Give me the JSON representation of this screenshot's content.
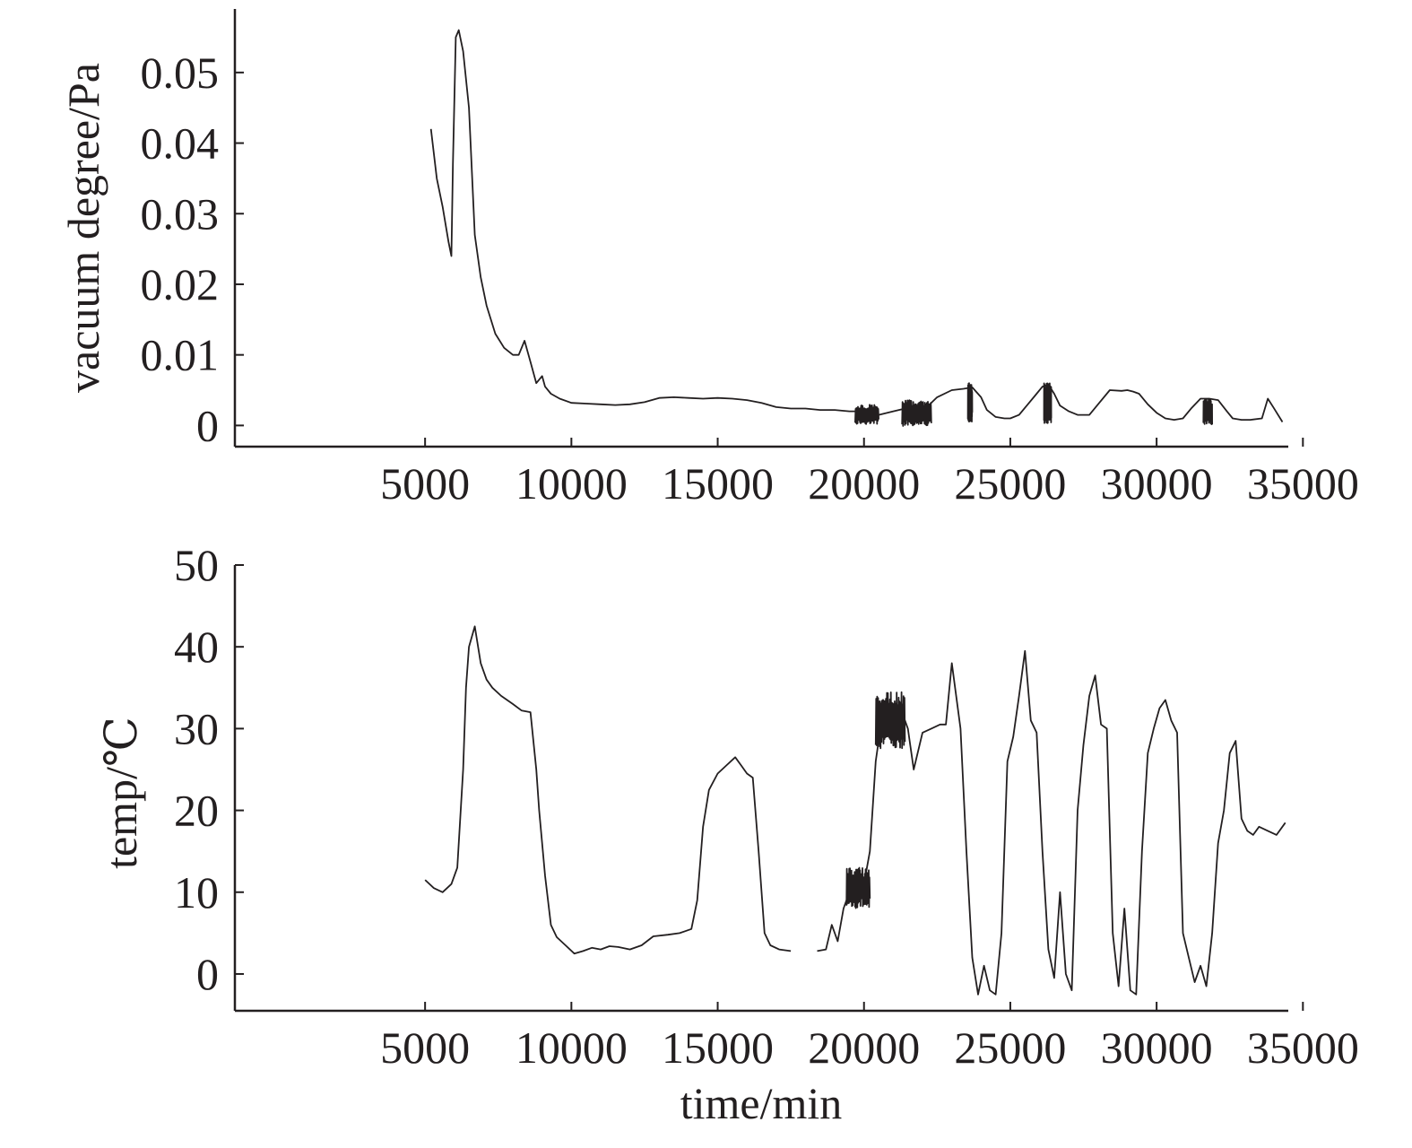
{
  "chart_data": [
    {
      "type": "line",
      "title": "",
      "xlabel": "",
      "ylabel": "vacuum degree/Pa",
      "xlim": [
        -1500,
        34500
      ],
      "ylim": [
        -0.003,
        0.059
      ],
      "xticks": [
        5000,
        10000,
        15000,
        20000,
        25000,
        30000,
        35000
      ],
      "xtick_labels": [
        "5000",
        "10000",
        "15000",
        "20000",
        "25000",
        "30000",
        "35000"
      ],
      "yticks": [
        0,
        0.01,
        0.02,
        0.03,
        0.04,
        0.05
      ],
      "ytick_labels": [
        "0",
        "0.01",
        "0.02",
        "0.03",
        "0.04",
        "0.05"
      ],
      "grid": false,
      "series": [
        {
          "segments": [
            {
              "x": [
                5200,
                5400,
                5600,
                5800,
                5900,
                5950,
                6050,
                6150,
                6300,
                6500,
                6700,
                6900,
                7100,
                7400,
                7700,
                8000,
                8200,
                8400,
                8600,
                8800,
                9000,
                9100,
                9300,
                9600,
                10000,
                10500,
                11000,
                11500,
                12000,
                12500,
                13000,
                13500,
                14000,
                14500,
                15000,
                15500,
                16000,
                16500,
                17000,
                17500,
                18000,
                18500,
                19000,
                19500,
                20000,
                20500,
                21000,
                21500,
                22000,
                22500,
                23000,
                23400,
                23700,
                24000,
                24200,
                24500,
                24800,
                25000,
                25300,
                25600,
                25900,
                26100,
                26300,
                26500,
                26700,
                27000,
                27300,
                27700,
                28000,
                28400,
                28800,
                29000,
                29200,
                29400,
                29700,
                30000,
                30300,
                30600,
                30900,
                31200,
                31500,
                31800,
                32100,
                32400,
                32600,
                32900,
                33200,
                33600,
                33800,
                34000,
                34300
              ],
              "y": [
                0.042,
                0.035,
                0.031,
                0.026,
                0.024,
                0.037,
                0.055,
                0.056,
                0.053,
                0.045,
                0.027,
                0.021,
                0.017,
                0.013,
                0.011,
                0.01,
                0.01,
                0.012,
                0.009,
                0.006,
                0.007,
                0.0055,
                0.0045,
                0.0038,
                0.0032,
                0.0031,
                0.003,
                0.0029,
                0.003,
                0.0033,
                0.0039,
                0.004,
                0.0039,
                0.0038,
                0.0039,
                0.0038,
                0.0036,
                0.0032,
                0.0026,
                0.0024,
                0.0024,
                0.0022,
                0.0022,
                0.002,
                0.002,
                0.0015,
                0.002,
                0.0025,
                0.002,
                0.004,
                0.005,
                0.0052,
                0.0054,
                0.004,
                0.0022,
                0.0012,
                0.001,
                0.001,
                0.0015,
                0.003,
                0.0045,
                0.0055,
                0.0058,
                0.0045,
                0.0028,
                0.002,
                0.0015,
                0.0015,
                0.003,
                0.005,
                0.0049,
                0.005,
                0.0048,
                0.0045,
                0.003,
                0.0018,
                0.001,
                0.0008,
                0.001,
                0.0025,
                0.0038,
                0.0038,
                0.0036,
                0.002,
                0.001,
                0.0008,
                0.0008,
                0.001,
                0.0038,
                0.0025,
                0.0005
              ]
            }
          ],
          "noise": [
            {
              "x_range": [
                19700,
                20500
              ],
              "y_range": [
                0.0002,
                0.003
              ]
            },
            {
              "x_range": [
                21300,
                22300
              ],
              "y_range": [
                -0.0001,
                0.0036
              ]
            },
            {
              "x_range": [
                23550,
                23700
              ],
              "y_range": [
                0.0005,
                0.006
              ]
            },
            {
              "x_range": [
                26150,
                26400
              ],
              "y_range": [
                0.0003,
                0.006
              ]
            },
            {
              "x_range": [
                31600,
                31900
              ],
              "y_range": [
                0.0001,
                0.0038
              ]
            }
          ]
        }
      ]
    },
    {
      "type": "line",
      "title": "",
      "xlabel": "time/min",
      "ylabel": "temp/℃",
      "xlim": [
        -1500,
        34500
      ],
      "ylim": [
        -4.5,
        50
      ],
      "xticks": [
        5000,
        10000,
        15000,
        20000,
        25000,
        30000,
        35000
      ],
      "xtick_labels": [
        "5000",
        "10000",
        "15000",
        "20000",
        "25000",
        "30000",
        "35000"
      ],
      "yticks": [
        0,
        10,
        20,
        30,
        40,
        50
      ],
      "ytick_labels": [
        "0",
        "10",
        "20",
        "30",
        "40",
        "50"
      ],
      "grid": false,
      "series": [
        {
          "segments": [
            {
              "x": [
                5000,
                5300,
                5600,
                5900,
                6100,
                6300,
                6400,
                6500,
                6700,
                6900,
                7100,
                7300,
                7600,
                8000,
                8300,
                8600,
                8800,
                8900,
                9100,
                9300,
                9500,
                9800,
                10100,
                10400,
                10700,
                11000,
                11300,
                11600,
                12000,
                12400,
                12800,
                13300,
                13700,
                14100,
                14300,
                14500,
                14700,
                15000,
                15300,
                15600,
                15800,
                16000,
                16200,
                16400,
                16600,
                16800,
                17100,
                17500
              ],
              "y": [
                11.5,
                10.5,
                10.0,
                11.0,
                13.0,
                25.0,
                35.0,
                40.0,
                42.5,
                38.0,
                36.0,
                35.0,
                34.0,
                33.0,
                32.2,
                32.0,
                25.0,
                20.0,
                12.0,
                6.0,
                4.5,
                3.5,
                2.5,
                2.8,
                3.2,
                3.0,
                3.4,
                3.3,
                3.0,
                3.5,
                4.6,
                4.8,
                5.0,
                5.5,
                9.0,
                18.0,
                22.5,
                24.5,
                25.5,
                26.5,
                25.5,
                24.5,
                24.0,
                15.0,
                5.0,
                3.5,
                3.0,
                2.8
              ]
            },
            {
              "x": [
                18400,
                18700,
                18900,
                19100,
                19300,
                19500,
                19700,
                20000,
                20200,
                20400,
                20600,
                20900,
                21200,
                21500,
                21700,
                22000,
                22300,
                22600,
                22800,
                23000,
                23300,
                23500,
                23700,
                23900,
                24100,
                24300,
                24500,
                24700,
                24900,
                25100,
                25300,
                25500,
                25700,
                25900,
                26100,
                26300,
                26500,
                26700,
                26900,
                27100,
                27300,
                27500,
                27700,
                27900,
                28100,
                28300,
                28500,
                28700,
                28900,
                29100,
                29300,
                29500,
                29700,
                29900,
                30100,
                30300,
                30500,
                30700,
                30900,
                31100,
                31300,
                31500,
                31700,
                31900,
                32100,
                32300,
                32500,
                32700,
                32900,
                33100,
                33300,
                33500,
                33800,
                34100,
                34400
              ],
              "y": [
                2.8,
                3.0,
                6.0,
                4.0,
                8.0,
                10.0,
                11.0,
                11.0,
                15.0,
                26.0,
                31.0,
                32.0,
                33.0,
                30.0,
                25.0,
                29.5,
                30.0,
                30.5,
                30.5,
                38.0,
                30.0,
                15.0,
                2.0,
                -2.5,
                1.0,
                -2.0,
                -2.5,
                5.0,
                26.0,
                29.0,
                34.0,
                39.5,
                31.0,
                29.5,
                15.0,
                3.0,
                -0.5,
                10.0,
                0.0,
                -2.0,
                20.0,
                28.0,
                34.0,
                36.5,
                30.5,
                30.0,
                5.0,
                -1.5,
                8.0,
                -2.0,
                -2.5,
                15.0,
                27.0,
                30.0,
                32.5,
                33.5,
                31.0,
                29.5,
                5.0,
                2.0,
                -1.0,
                1.0,
                -1.5,
                5.0,
                16.0,
                20.0,
                27.0,
                28.5,
                19.0,
                17.5,
                17.0,
                18.0,
                17.5,
                17.0,
                18.5
              ]
            }
          ],
          "noise": [
            {
              "x_range": [
                19400,
                20200
              ],
              "y_range": [
                8.0,
                13.0
              ]
            },
            {
              "x_range": [
                20400,
                21400
              ],
              "y_range": [
                27.5,
                34.5
              ]
            }
          ]
        }
      ]
    }
  ]
}
